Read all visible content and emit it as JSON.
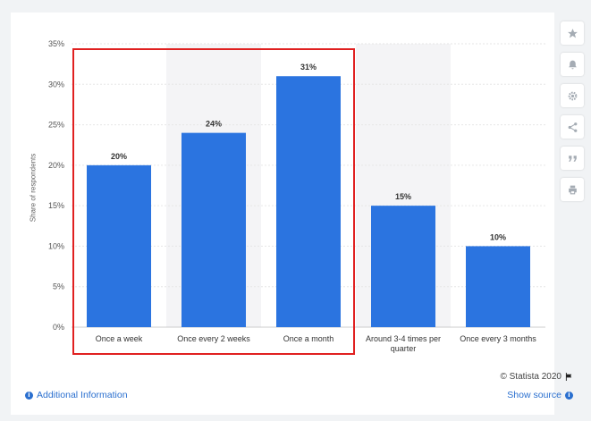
{
  "chart_data": {
    "type": "bar",
    "categories": [
      "Once a week",
      "Once every 2 weeks",
      "Once a month",
      "Around 3-4 times per quarter",
      "Once every 3 months"
    ],
    "values": [
      20,
      24,
      31,
      15,
      10
    ],
    "value_labels": [
      "20%",
      "24%",
      "31%",
      "15%",
      "10%"
    ],
    "ylabel": "Share of respondents",
    "ylim": [
      0,
      35
    ],
    "yticks": [
      0,
      5,
      10,
      15,
      20,
      25,
      30,
      35
    ],
    "ytick_labels": [
      "0%",
      "5%",
      "10%",
      "15%",
      "20%",
      "25%",
      "30%",
      "35%"
    ],
    "bar_color": "#2b74e0",
    "grid": true,
    "highlight_box_color": "#e02020",
    "highlighted_categories": [
      "Once a week",
      "Once every 2 weeks",
      "Once a month"
    ]
  },
  "footer": {
    "copyright": "© Statista 2020",
    "additional_info": "Additional Information",
    "show_source": "Show source"
  },
  "sidebar": {
    "icons": [
      "star-icon",
      "bell-icon",
      "gear-icon",
      "share-icon",
      "quote-icon",
      "print-icon"
    ]
  }
}
